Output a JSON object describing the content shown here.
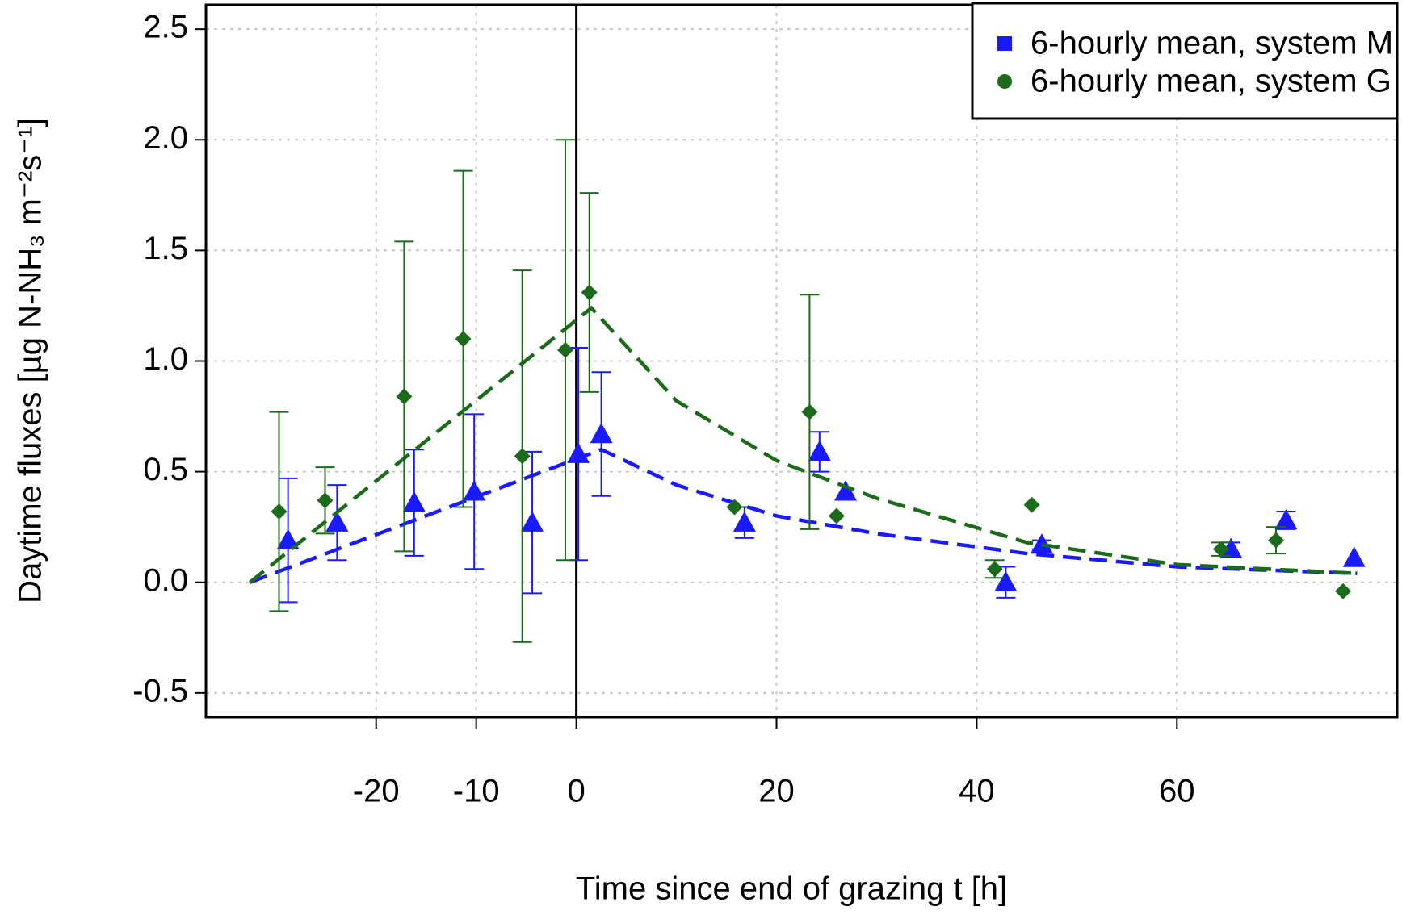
{
  "chart_data": {
    "type": "scatter",
    "xlabel": "Time since end of grazing t [h]",
    "ylabel": "Daytime fluxes [µg N-NH₃ m⁻²s⁻¹]",
    "xlim": [
      -37,
      82
    ],
    "ylim": [
      -0.61,
      2.61
    ],
    "xticks": [
      -20,
      -10,
      0,
      20,
      40,
      60
    ],
    "yticks": [
      {
        "value": -0.5,
        "label": "-0.5"
      },
      {
        "value": 0,
        "label": "0.0"
      },
      0.5,
      {
        "value": 1,
        "label": "1.0"
      },
      1.5,
      {
        "value": 2,
        "label": "2.0"
      },
      2.5
    ],
    "grid": true,
    "legend": "upper right",
    "vline": 0,
    "series": [
      {
        "name": "6-hourly mean, system M",
        "color": "#1a1aff",
        "marker": "triangle",
        "legend_marker": "square",
        "x": [
          -28.8,
          -23.9,
          -16.2,
          -10.2,
          -4.4,
          0.2,
          2.5,
          16.8,
          24.3,
          26.9,
          42.9,
          46.5,
          65.4,
          70.9,
          77.7
        ],
        "values": [
          0.19,
          0.27,
          0.36,
          0.41,
          0.27,
          0.58,
          0.67,
          0.27,
          0.59,
          0.41,
          0.0,
          0.17,
          0.15,
          0.28,
          0.11
        ],
        "errors": [
          0.28,
          0.17,
          0.24,
          0.35,
          0.32,
          0.48,
          0.28,
          0.07,
          0.09,
          null,
          0.07,
          0.02,
          0.03,
          0.04,
          null
        ],
        "fit_x": [
          -32.6,
          2.5,
          10,
          20,
          30,
          45,
          60,
          78
        ],
        "fit_y": [
          0,
          0.6,
          0.44,
          0.3,
          0.22,
          0.13,
          0.07,
          0.04
        ]
      },
      {
        "name": "6-hourly mean, system G",
        "color": "#1b6b1b",
        "marker": "diamond",
        "legend_marker": "circle",
        "x": [
          -29.7,
          -25.1,
          -17.2,
          -11.3,
          -5.4,
          -1.1,
          1.3,
          15.8,
          23.3,
          26.0,
          41.8,
          45.5,
          64.4,
          69.9,
          76.6
        ],
        "values": [
          0.32,
          0.37,
          0.84,
          1.1,
          0.57,
          1.05,
          1.31,
          0.34,
          0.77,
          0.3,
          0.06,
          0.35,
          0.15,
          0.19,
          -0.04
        ],
        "errors": [
          0.45,
          0.15,
          0.7,
          0.76,
          0.84,
          0.95,
          0.45,
          null,
          0.53,
          null,
          0.04,
          null,
          0.03,
          0.06,
          null
        ],
        "fit_x": [
          -32.6,
          1.5,
          10,
          20,
          30,
          45,
          60,
          78
        ],
        "fit_y": [
          0,
          1.24,
          0.82,
          0.55,
          0.38,
          0.18,
          0.08,
          0.04
        ]
      }
    ]
  }
}
